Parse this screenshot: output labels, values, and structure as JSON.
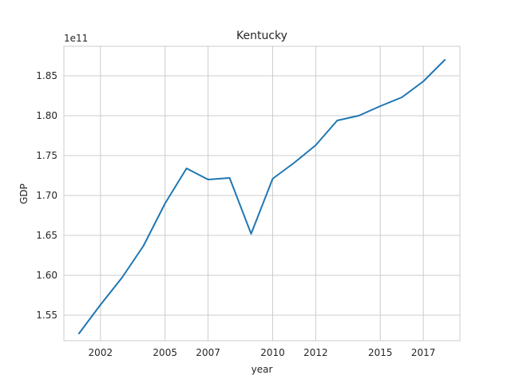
{
  "chart_data": {
    "type": "line",
    "title": "Kentucky",
    "xlabel": "year",
    "ylabel": "GDP",
    "y_offset_label": "1e11",
    "x_ticks": [
      2002,
      2005,
      2007,
      2010,
      2012,
      2015,
      2017
    ],
    "y_ticks": [
      "1.55",
      "1.60",
      "1.65",
      "1.70",
      "1.75",
      "1.80",
      "1.85"
    ],
    "y_tick_values": [
      1.55,
      1.6,
      1.65,
      1.7,
      1.75,
      1.8,
      1.85
    ],
    "xlim": [
      2000.3,
      2018.7
    ],
    "ylim": [
      1.518,
      1.887
    ],
    "grid": true,
    "color": "#1f77b4",
    "series": [
      {
        "x": [
          2001,
          2002,
          2003,
          2004,
          2005,
          2006,
          2007,
          2008,
          2009,
          2010,
          2011,
          2012,
          2013,
          2014,
          2015,
          2016,
          2017,
          2018
        ],
        "values": [
          1.527,
          1.563,
          1.597,
          1.637,
          1.69,
          1.734,
          1.72,
          1.722,
          1.652,
          1.721,
          1.741,
          1.763,
          1.794,
          1.8,
          1.812,
          1.823,
          1.843,
          1.87
        ]
      }
    ]
  }
}
